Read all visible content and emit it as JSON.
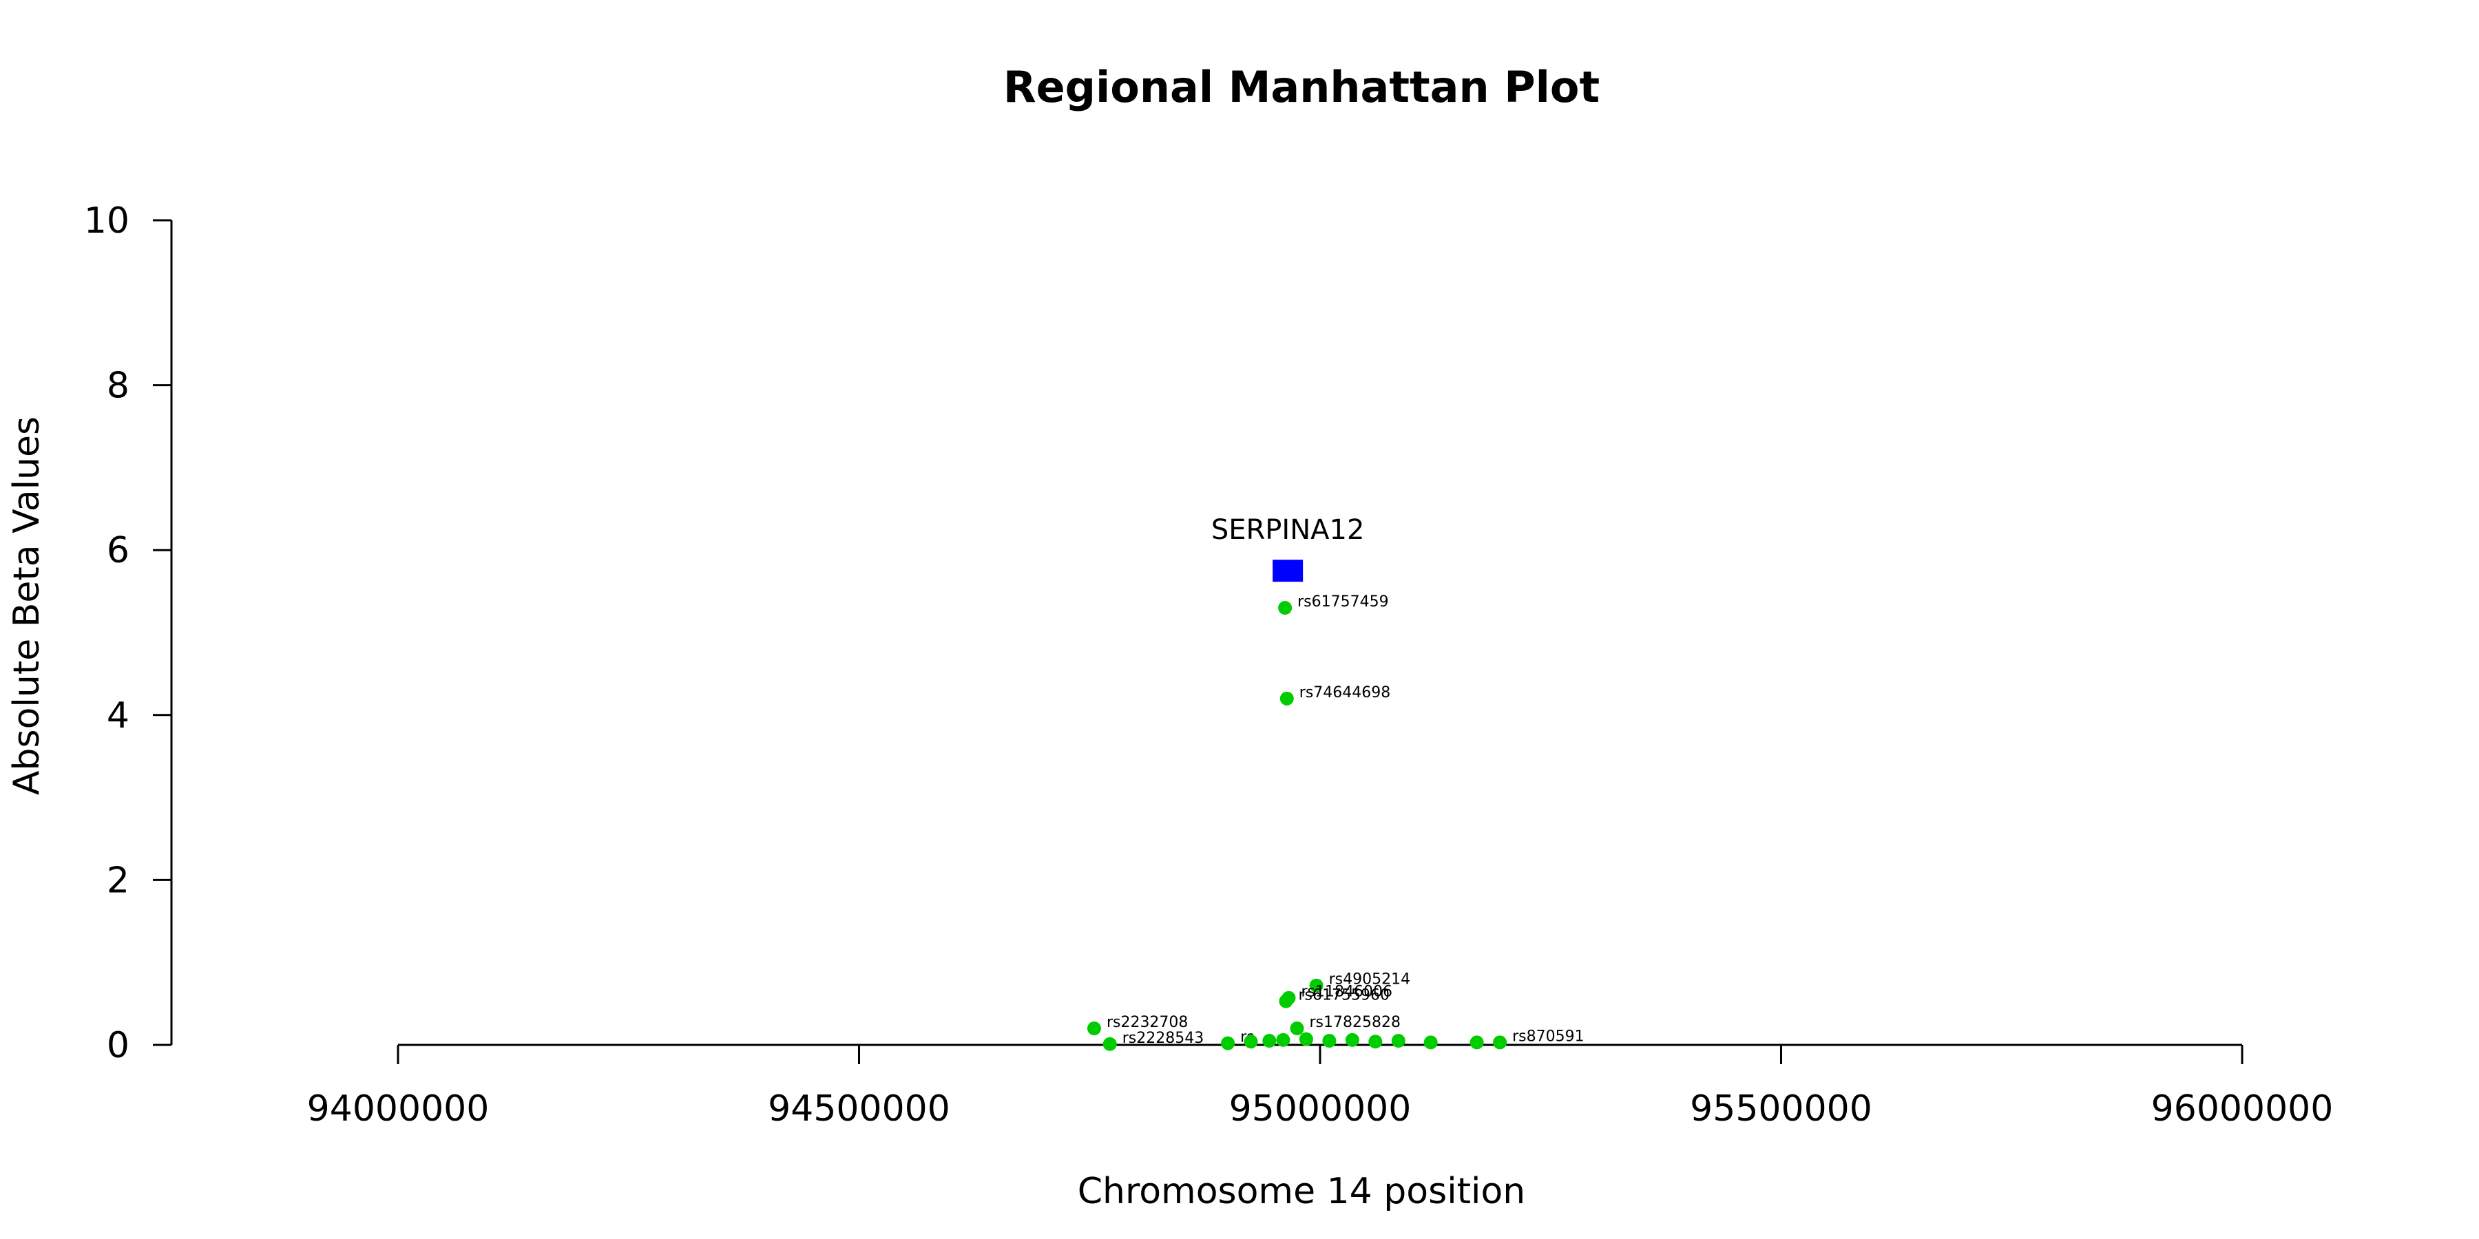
{
  "chart_data": {
    "type": "scatter",
    "title": "Regional Manhattan Plot",
    "xlabel": "Chromosome 14 position",
    "ylabel": "Absolute Beta Values",
    "xlim": [
      94000000,
      96000000
    ],
    "ylim": [
      0,
      10
    ],
    "xticks": [
      94000000,
      94500000,
      95000000,
      95500000,
      96000000
    ],
    "yticks": [
      0,
      2,
      4,
      6,
      8,
      10
    ],
    "xtick_labels": [
      "94000000",
      "94500000",
      "95000000",
      "95500000",
      "96000000"
    ],
    "ytick_labels": [
      "0",
      "2",
      "4",
      "6",
      "8",
      "10"
    ],
    "grid": false,
    "colors": {
      "snp": "#00CC00",
      "gene": "#0000FF"
    },
    "gene": {
      "name": "SERPINA12",
      "x": 94965000,
      "y": 5.75
    },
    "series": [
      {
        "points": [
          {
            "x": 94962000,
            "y": 5.3,
            "label": "rs61757459"
          },
          {
            "x": 94964000,
            "y": 4.2,
            "label": "rs74644698"
          },
          {
            "x": 94996000,
            "y": 0.72,
            "label": "rs4905214"
          },
          {
            "x": 94966000,
            "y": 0.57,
            "label": "rs11846006"
          },
          {
            "x": 94963000,
            "y": 0.53,
            "label": "rs61755960"
          },
          {
            "x": 94755000,
            "y": 0.2,
            "label": "rs2232708"
          },
          {
            "x": 94975000,
            "y": 0.2,
            "label": "rs17825828"
          },
          {
            "x": 94772000,
            "y": 0.01,
            "label": "rs2228543"
          },
          {
            "x": 94900000,
            "y": 0.02,
            "label": "rs"
          },
          {
            "x": 94925000,
            "y": 0.04,
            "label": ""
          },
          {
            "x": 94945000,
            "y": 0.05,
            "label": ""
          },
          {
            "x": 94960000,
            "y": 0.06,
            "label": ""
          },
          {
            "x": 94985000,
            "y": 0.07,
            "label": ""
          },
          {
            "x": 95010000,
            "y": 0.05,
            "label": ""
          },
          {
            "x": 95035000,
            "y": 0.06,
            "label": ""
          },
          {
            "x": 95060000,
            "y": 0.04,
            "label": ""
          },
          {
            "x": 95085000,
            "y": 0.05,
            "label": ""
          },
          {
            "x": 95120000,
            "y": 0.03,
            "label": ""
          },
          {
            "x": 95170000,
            "y": 0.03,
            "label": ""
          },
          {
            "x": 95195000,
            "y": 0.03,
            "label": "rs870591"
          }
        ]
      }
    ]
  }
}
